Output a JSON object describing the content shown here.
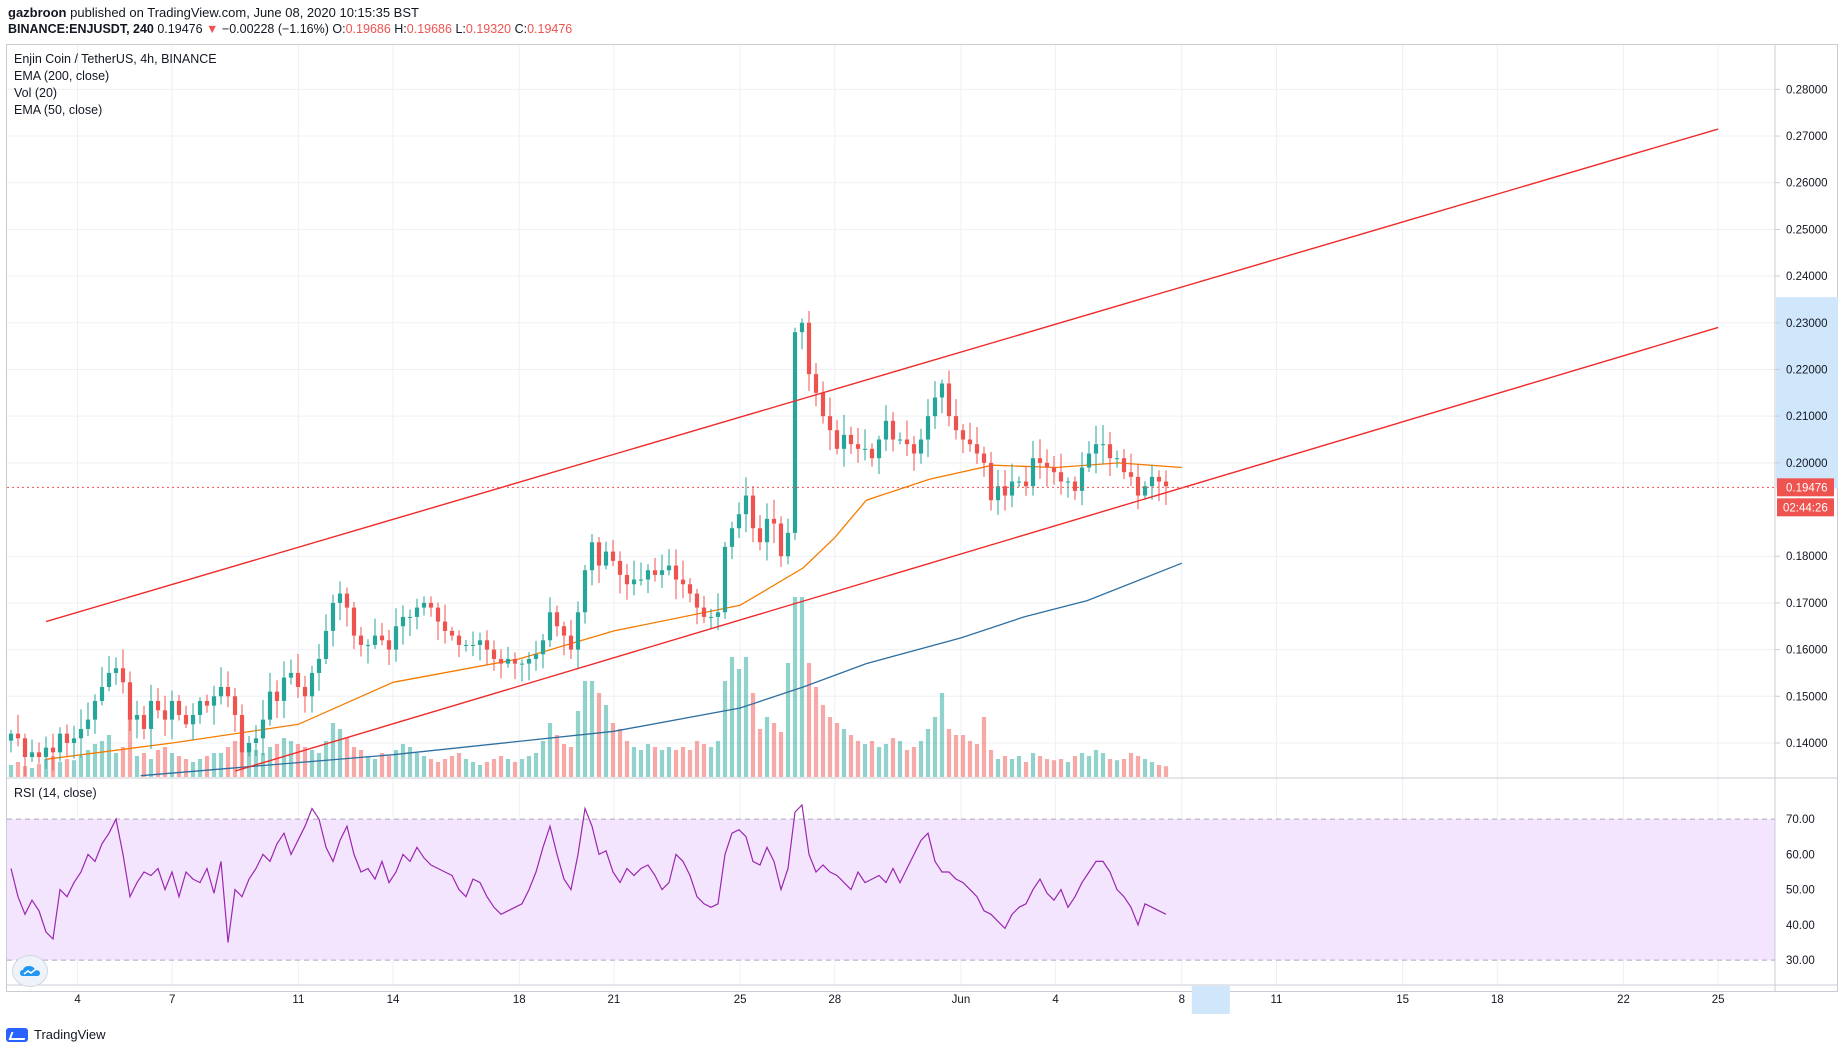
{
  "header": {
    "author": "gazbroon",
    "published_text": "published on TradingView.com, June 08, 2020 10:15:35 BST",
    "symbol": "BINANCE:ENJUSDT, 240",
    "last_price": "0.19476",
    "change_arrow": "▼",
    "change": "−0.00228 (−1.16%)",
    "o_label": "O:",
    "o_value": "0.19686",
    "h_label": "H:",
    "h_value": "0.19686",
    "l_label": "L:",
    "l_value": "0.19320",
    "c_label": "C:",
    "c_value": "0.19476"
  },
  "legend": {
    "pair": "Enjin Coin / TetherUS, 4h, BINANCE",
    "ema200": "EMA (200, close)",
    "vol": "Vol (20)",
    "ema50": "EMA (50, close)",
    "rsi": "RSI (14, close)"
  },
  "price_label": "0.19476",
  "countdown_label": "02:44:26",
  "footer": {
    "brand": "TradingView"
  },
  "colors": {
    "up": "#26a69a",
    "down": "#ef5350",
    "ema50": "#f57c00",
    "ema200": "#2f6f9f",
    "rsi_line": "#9c27b0",
    "rsi_band": "#f3e5fd",
    "channel": "#ef2b2b",
    "price_label_bg": "#ef5350",
    "axis_highlight": "#cfe6fb"
  },
  "chart_data": [
    {
      "type": "candlestick",
      "title": "Enjin Coin / TetherUS, 4h, BINANCE",
      "x_tick_labels": [
        "4",
        "7",
        "11",
        "14",
        "18",
        "21",
        "25",
        "28",
        "Jun",
        "4",
        "8",
        "11",
        "15",
        "18",
        "22",
        "25"
      ],
      "y_tick_labels": [
        "0.28000",
        "0.27000",
        "0.26000",
        "0.25000",
        "0.24000",
        "0.23000",
        "0.22000",
        "0.21000",
        "0.20000",
        "0.18000",
        "0.17000",
        "0.16000",
        "0.15000",
        "0.14000"
      ],
      "ylim": [
        0.1325,
        0.2895
      ],
      "grid": true,
      "close_series": [
        0.142,
        0.141,
        0.137,
        0.138,
        0.137,
        0.139,
        0.138,
        0.142,
        0.14,
        0.141,
        0.143,
        0.145,
        0.149,
        0.152,
        0.155,
        0.156,
        0.153,
        0.145,
        0.146,
        0.143,
        0.149,
        0.147,
        0.145,
        0.149,
        0.146,
        0.144,
        0.146,
        0.149,
        0.148,
        0.15,
        0.152,
        0.15,
        0.146,
        0.138,
        0.14,
        0.141,
        0.145,
        0.151,
        0.149,
        0.154,
        0.155,
        0.152,
        0.15,
        0.155,
        0.158,
        0.164,
        0.17,
        0.172,
        0.169,
        0.163,
        0.161,
        0.161,
        0.163,
        0.162,
        0.16,
        0.165,
        0.167,
        0.167,
        0.169,
        0.17,
        0.169,
        0.166,
        0.164,
        0.163,
        0.161,
        0.161,
        0.161,
        0.162,
        0.16,
        0.158,
        0.157,
        0.158,
        0.157,
        0.157,
        0.158,
        0.159,
        0.162,
        0.168,
        0.165,
        0.163,
        0.16,
        0.168,
        0.177,
        0.183,
        0.178,
        0.181,
        0.179,
        0.176,
        0.174,
        0.175,
        0.175,
        0.177,
        0.176,
        0.177,
        0.178,
        0.175,
        0.174,
        0.172,
        0.169,
        0.167,
        0.167,
        0.168,
        0.182,
        0.186,
        0.189,
        0.193,
        0.186,
        0.183,
        0.188,
        0.187,
        0.18,
        0.185,
        0.228,
        0.23,
        0.219,
        0.215,
        0.21,
        0.207,
        0.203,
        0.206,
        0.204,
        0.203,
        0.203,
        0.201,
        0.205,
        0.209,
        0.205,
        0.205,
        0.204,
        0.202,
        0.205,
        0.21,
        0.214,
        0.217,
        0.21,
        0.207,
        0.205,
        0.204,
        0.202,
        0.2,
        0.192,
        0.195,
        0.193,
        0.196,
        0.196,
        0.195,
        0.201,
        0.2,
        0.199,
        0.198,
        0.196,
        0.196,
        0.194,
        0.199,
        0.202,
        0.204,
        0.204,
        0.201,
        0.201,
        0.198,
        0.197,
        0.193,
        0.195,
        0.197,
        0.196,
        0.195
      ]
    },
    {
      "type": "line",
      "series": [
        {
          "name": "EMA (50, close)",
          "values_at_dates": [
            [
              "May 3",
              0.1365
            ],
            [
              "May 7",
              0.14
            ],
            [
              "May 11",
              0.144
            ],
            [
              "May 14",
              0.153
            ],
            [
              "May 18",
              0.158
            ],
            [
              "May 21",
              0.164
            ],
            [
              "May 25",
              0.1695
            ],
            [
              "May 27",
              0.1775
            ],
            [
              "May 28",
              0.184
            ],
            [
              "May 29",
              0.192
            ],
            [
              "May 31",
              0.1965
            ],
            [
              "Jun 2",
              0.1995
            ],
            [
              "Jun 4",
              0.199
            ],
            [
              "Jun 6",
              0.2
            ],
            [
              "Jun 8",
              0.199
            ]
          ]
        }
      ]
    },
    {
      "type": "line",
      "series": [
        {
          "name": "EMA (200, close)",
          "values_at_dates": [
            [
              "May 6",
              0.133
            ],
            [
              "May 14",
              0.1375
            ],
            [
              "May 21",
              0.1425
            ],
            [
              "May 25",
              0.1475
            ],
            [
              "May 27",
              0.152
            ],
            [
              "May 29",
              0.157
            ],
            [
              "Jun 1",
              0.1625
            ],
            [
              "Jun 3",
              0.167
            ],
            [
              "Jun 5",
              0.1705
            ],
            [
              "Jun 8",
              0.1785
            ]
          ]
        }
      ]
    },
    {
      "type": "line",
      "title": "Parallel channel (drawn)",
      "series": [
        {
          "name": "upper",
          "values_at_dates": [
            [
              "May 3",
              0.166
            ],
            [
              "Jun 25",
              0.2715
            ]
          ]
        },
        {
          "name": "lower",
          "values_at_dates": [
            [
              "May 9",
              0.134
            ],
            [
              "Jun 25",
              0.229
            ]
          ]
        }
      ]
    },
    {
      "type": "bar",
      "title": "Vol (20)",
      "values_relative": [
        0.2,
        0.25,
        0.18,
        0.15,
        0.22,
        0.3,
        0.35,
        0.25,
        0.3,
        0.28,
        0.35,
        0.45,
        0.55,
        0.6,
        0.7,
        0.4,
        0.5,
        1.0,
        0.35,
        0.4,
        0.3,
        0.45,
        0.5,
        0.4,
        0.35,
        0.3,
        0.25,
        0.3,
        0.35,
        0.4,
        0.4,
        0.5,
        0.6,
        0.8,
        0.55,
        0.45,
        0.4,
        0.5,
        0.55,
        0.65,
        0.6,
        0.55,
        0.5,
        0.45,
        0.4,
        0.6,
        0.9,
        0.8,
        0.65,
        0.5,
        0.45,
        0.35,
        0.3,
        0.4,
        0.35,
        0.45,
        0.55,
        0.5,
        0.4,
        0.35,
        0.3,
        0.25,
        0.3,
        0.35,
        0.4,
        0.3,
        0.25,
        0.2,
        0.25,
        0.3,
        0.35,
        0.3,
        0.25,
        0.3,
        0.35,
        0.4,
        0.6,
        0.9,
        0.7,
        0.55,
        0.5,
        1.1,
        1.6,
        1.6,
        1.4,
        1.2,
        0.9,
        0.8,
        0.6,
        0.5,
        0.45,
        0.55,
        0.5,
        0.45,
        0.5,
        0.45,
        0.5,
        0.45,
        0.6,
        0.55,
        0.5,
        0.6,
        1.6,
        2.0,
        1.8,
        2.0,
        1.4,
        0.8,
        1.0,
        0.9,
        0.75,
        1.9,
        3.0,
        3.0,
        1.9,
        1.5,
        1.2,
        1.0,
        0.9,
        0.8,
        0.7,
        0.6,
        0.55,
        0.6,
        0.5,
        0.55,
        0.65,
        0.6,
        0.45,
        0.5,
        0.6,
        0.8,
        1.0,
        1.4,
        0.8,
        0.7,
        0.7,
        0.6,
        0.55,
        1.0,
        0.45,
        0.3,
        0.35,
        0.3,
        0.35,
        0.25,
        0.4,
        0.35,
        0.3,
        0.28,
        0.3,
        0.25,
        0.35,
        0.4,
        0.35,
        0.45,
        0.4,
        0.3,
        0.28,
        0.3,
        0.4,
        0.35,
        0.3,
        0.25,
        0.2,
        0.18
      ]
    },
    {
      "type": "line",
      "title": "RSI (14, close)",
      "y_tick_labels": [
        "70.00",
        "60.00",
        "50.00",
        "40.00",
        "30.00"
      ],
      "ylim": [
        27.5,
        74.0
      ],
      "series": [
        {
          "name": "RSI",
          "values": [
            56,
            48,
            43,
            47,
            44,
            38,
            36,
            50,
            48,
            52,
            55,
            60,
            58,
            63,
            66,
            70,
            60,
            48,
            52,
            55,
            54,
            56,
            50,
            55,
            48,
            55,
            53,
            52,
            56,
            49,
            58,
            35,
            50,
            48,
            53,
            56,
            60,
            58,
            63,
            66,
            60,
            64,
            68,
            73,
            70,
            62,
            58,
            64,
            68,
            60,
            55,
            56,
            53,
            58,
            52,
            55,
            60,
            58,
            62,
            59,
            57,
            56,
            55,
            54,
            50,
            48,
            53,
            52,
            48,
            45,
            43,
            44,
            45,
            46,
            50,
            55,
            62,
            68,
            60,
            53,
            50,
            60,
            73,
            68,
            60,
            61,
            55,
            52,
            56,
            54,
            56,
            57,
            54,
            50,
            52,
            60,
            58,
            54,
            48,
            46,
            45,
            46,
            60,
            66,
            67,
            65,
            58,
            57,
            62,
            58,
            50,
            56,
            72,
            74,
            60,
            55,
            57,
            55,
            54,
            52,
            50,
            55,
            52,
            53,
            54,
            52,
            56,
            52,
            56,
            60,
            64,
            66,
            58,
            55,
            55,
            53,
            52,
            50,
            48,
            44,
            43,
            41,
            39,
            43,
            45,
            46,
            50,
            53,
            49,
            47,
            50,
            45,
            48,
            52,
            55,
            58,
            58,
            55,
            50,
            48,
            45,
            40,
            46,
            45,
            44,
            43
          ]
        }
      ]
    }
  ]
}
